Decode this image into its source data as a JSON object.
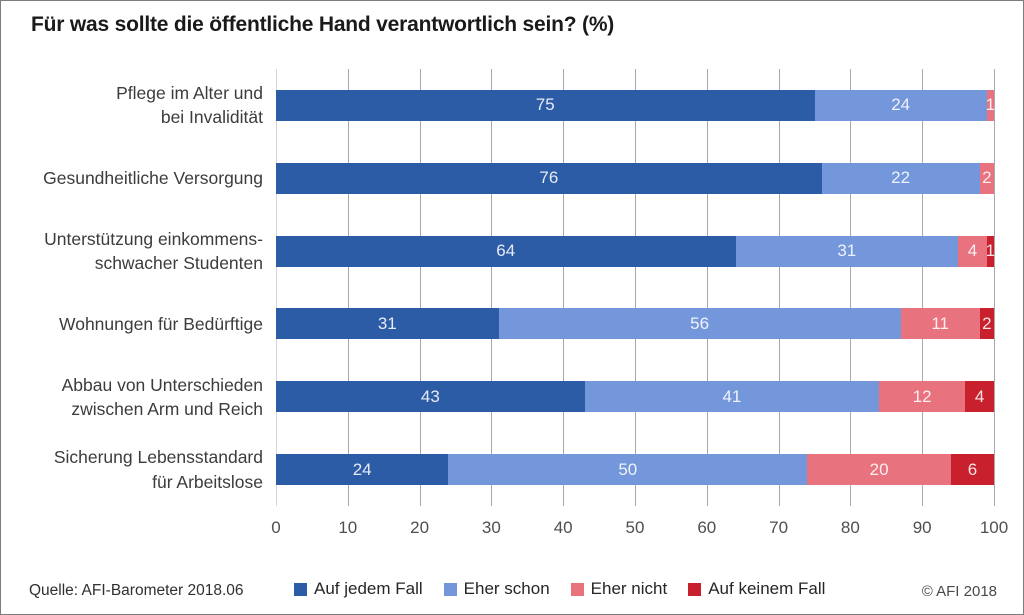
{
  "title": "Für was sollte die öffentliche Hand verantwortlich sein? (%)",
  "source": "Quelle: AFI-Barometer 2018.06",
  "copyright": "© AFI 2018",
  "chart_data": {
    "type": "bar",
    "orientation": "horizontal",
    "stacked": true,
    "title": "Für was sollte die öffentliche Hand verantwortlich sein? (%)",
    "categories": [
      "Pflege im Alter und\nbei Invalidität",
      "Gesundheitliche Versorgung",
      "Unterstützung einkommens-\nschwacher Studenten",
      "Wohnungen für Bedürftige",
      "Abbau von Unterschieden\nzwischen Arm und Reich",
      "Sicherung Lebensstandard\nfür Arbeitslose"
    ],
    "series": [
      {
        "name": "Auf jedem Fall",
        "color": "#2d5ca7",
        "values": [
          75,
          76,
          64,
          31,
          43,
          24
        ]
      },
      {
        "name": "Eher schon",
        "color": "#7497db",
        "values": [
          24,
          22,
          31,
          56,
          41,
          50
        ]
      },
      {
        "name": "Eher nicht",
        "color": "#e8737f",
        "values": [
          1,
          2,
          4,
          11,
          12,
          20
        ]
      },
      {
        "name": "Auf keinem Fall",
        "color": "#c8202c",
        "values": [
          0,
          0,
          1,
          2,
          4,
          6
        ]
      }
    ],
    "x_ticks": [
      0,
      10,
      20,
      30,
      40,
      50,
      60,
      70,
      80,
      90,
      100
    ],
    "xlim": [
      0,
      100
    ],
    "grid": "vertical",
    "legend_position": "bottom"
  }
}
